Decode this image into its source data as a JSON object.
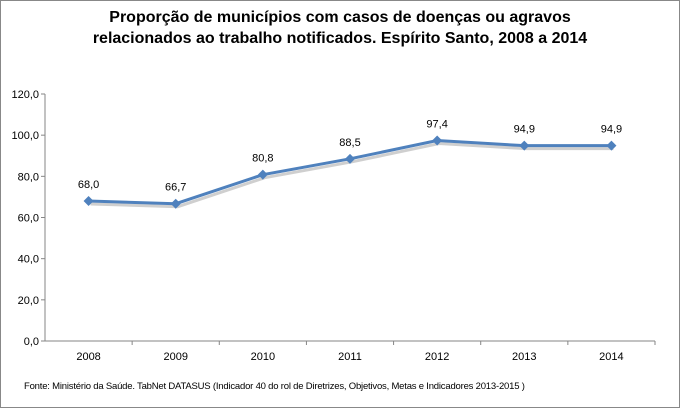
{
  "chart_data": {
    "type": "line",
    "title_lines": [
      "Proporção de municípios com casos de doenças ou agravos",
      "relacionados ao trabalho notificados. Espírito Santo, 2008 a 2014"
    ],
    "categories": [
      "2008",
      "2009",
      "2010",
      "2011",
      "2012",
      "2013",
      "2014"
    ],
    "series": [
      {
        "name": "Proporção",
        "values": [
          68.0,
          66.7,
          80.8,
          88.5,
          97.4,
          94.9,
          94.9
        ],
        "labels": [
          "68,0",
          "66,7",
          "80,8",
          "88,5",
          "97,4",
          "94,9",
          "94,9"
        ],
        "color": "#4f81bd"
      }
    ],
    "y_ticks": [
      "0,0",
      "20,0",
      "40,0",
      "60,0",
      "80,0",
      "100,0",
      "120,0"
    ],
    "ylim": [
      0,
      120
    ],
    "grid": false,
    "legend": "none",
    "xlabel": "",
    "ylabel": ""
  },
  "source": "Fonte: Ministério da Saúde. TabNet DATASUS (Indicador 40  do rol de Diretrizes, Objetivos, Metas e Indicadores 2013-2015 )"
}
